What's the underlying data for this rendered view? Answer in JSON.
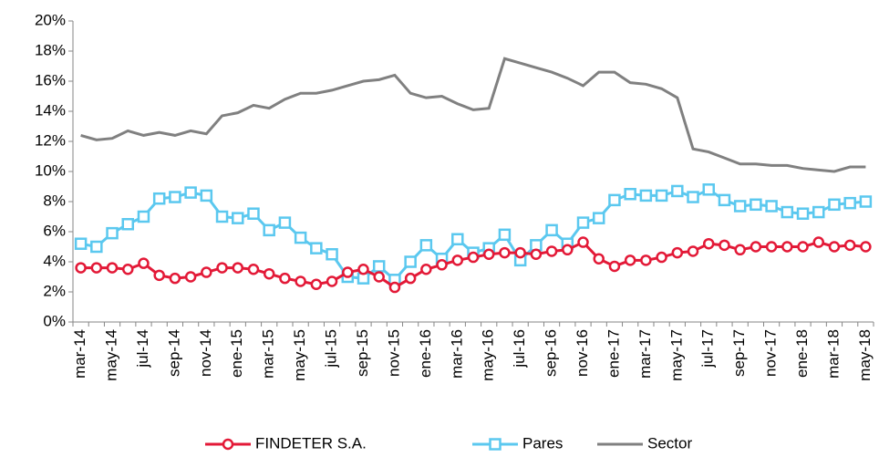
{
  "chart_data": {
    "type": "line",
    "categories": [
      "mar-14",
      null,
      "may-14",
      null,
      "jul-14",
      null,
      "sep-14",
      null,
      "nov-14",
      null,
      "ene-15",
      null,
      "mar-15",
      null,
      "may-15",
      null,
      "jul-15",
      null,
      "sep-15",
      null,
      "nov-15",
      null,
      "ene-16",
      null,
      "mar-16",
      null,
      "may-16",
      null,
      "jul-16",
      null,
      "sep-16",
      null,
      "nov-16",
      null,
      "ene-17",
      null,
      "mar-17",
      null,
      "may-17",
      null,
      "jul-17",
      null,
      "sep-17",
      null,
      "nov-17",
      null,
      "ene-18",
      null,
      "mar-18",
      null,
      "may-18"
    ],
    "series": [
      {
        "name": "FINDETER S.A.",
        "color": "#e31937",
        "marker": "circle",
        "values": [
          3.6,
          3.6,
          3.6,
          3.5,
          3.9,
          3.1,
          2.9,
          3.0,
          3.3,
          3.6,
          3.6,
          3.5,
          3.2,
          2.9,
          2.7,
          2.5,
          2.7,
          3.3,
          3.5,
          3.0,
          2.3,
          2.9,
          3.5,
          3.8,
          4.1,
          4.3,
          4.5,
          4.6,
          4.6,
          4.5,
          4.7,
          4.8,
          5.3,
          4.2,
          3.7,
          4.1,
          4.1,
          4.3,
          4.6,
          4.7,
          5.2,
          5.1,
          4.8,
          5.0,
          5.0,
          5.0,
          5.0,
          5.3,
          5.0,
          5.1,
          5.0
        ]
      },
      {
        "name": "Pares",
        "color": "#5bc8ef",
        "marker": "square",
        "values": [
          5.2,
          5.0,
          5.9,
          6.5,
          7.0,
          8.2,
          8.3,
          8.6,
          8.4,
          7.0,
          6.9,
          7.2,
          6.1,
          6.6,
          5.6,
          4.9,
          4.5,
          3.0,
          2.9,
          3.7,
          2.8,
          4.0,
          5.1,
          4.2,
          5.5,
          4.6,
          4.9,
          5.8,
          4.1,
          5.1,
          6.1,
          5.2,
          6.6,
          6.9,
          8.1,
          8.5,
          8.4,
          8.4,
          8.7,
          8.3,
          8.8,
          8.1,
          7.7,
          7.8,
          7.7,
          7.3,
          7.2,
          7.3,
          7.8,
          7.9,
          8.0
        ]
      },
      {
        "name": "Sector",
        "color": "#808080",
        "marker": "none",
        "values": [
          12.4,
          12.1,
          12.2,
          12.7,
          12.4,
          12.6,
          12.4,
          12.7,
          12.5,
          13.7,
          13.9,
          14.4,
          14.2,
          14.8,
          15.2,
          15.2,
          15.4,
          15.7,
          16.0,
          16.1,
          16.4,
          15.2,
          14.9,
          15.0,
          14.5,
          14.1,
          14.2,
          17.5,
          17.2,
          16.9,
          16.6,
          16.2,
          15.7,
          16.6,
          16.6,
          15.9,
          15.8,
          15.5,
          14.9,
          11.5,
          11.3,
          10.9,
          10.5,
          10.5,
          10.4,
          10.4,
          10.2,
          10.1,
          10.0,
          10.3,
          10.3
        ]
      }
    ],
    "ylim": [
      0,
      20
    ],
    "yticks": [
      {
        "value": 0,
        "label": "0%"
      },
      {
        "value": 2,
        "label": "2%"
      },
      {
        "value": 4,
        "label": "4%"
      },
      {
        "value": 6,
        "label": "6%"
      },
      {
        "value": 8,
        "label": "8%"
      },
      {
        "value": 10,
        "label": "10%"
      },
      {
        "value": 12,
        "label": "12%"
      },
      {
        "value": 14,
        "label": "14%"
      },
      {
        "value": 16,
        "label": "16%"
      },
      {
        "value": 18,
        "label": "18%"
      },
      {
        "value": 20,
        "label": "20%"
      }
    ],
    "grid": false,
    "legend": "bottom"
  }
}
